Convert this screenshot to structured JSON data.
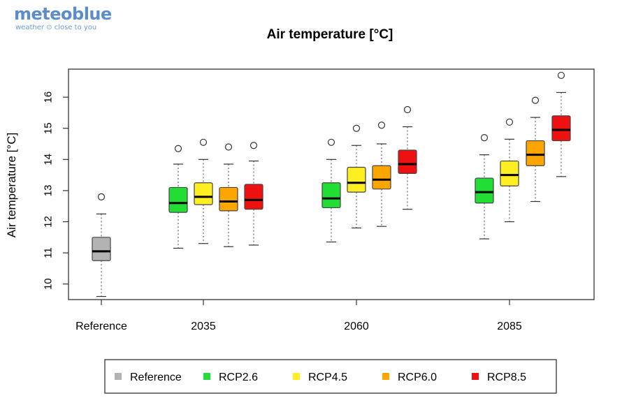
{
  "logo": {
    "name": "meteoblue",
    "tagline": "weather ⊙ close to you"
  },
  "chart_data": {
    "type": "box",
    "title": "Air temperature [°C]",
    "xlabel": "",
    "ylabel": "Air temperature [°C]",
    "ylim": [
      9.5,
      16.9
    ],
    "yticks": [
      10,
      11,
      12,
      13,
      14,
      15,
      16
    ],
    "categories": [
      "Reference",
      "2035",
      "2060",
      "2085"
    ],
    "grid": false,
    "legend_position": "bottom",
    "legend": [
      {
        "name": "Reference",
        "color": "#b3b3b3"
      },
      {
        "name": "RCP2.6",
        "color": "#22dd33"
      },
      {
        "name": "RCP4.5",
        "color": "#ffee22"
      },
      {
        "name": "RCP6.0",
        "color": "#ffa500"
      },
      {
        "name": "RCP8.5",
        "color": "#ee1111"
      }
    ],
    "boxes": [
      {
        "category": "Reference",
        "series": "Reference",
        "min": 9.6,
        "q1": 10.75,
        "median": 11.05,
        "q3": 11.5,
        "max": 12.25,
        "outliers": [
          12.8
        ]
      },
      {
        "category": "2035",
        "series": "RCP2.6",
        "min": 11.15,
        "q1": 12.3,
        "median": 12.6,
        "q3": 13.1,
        "max": 13.85,
        "outliers": [
          14.35
        ]
      },
      {
        "category": "2035",
        "series": "RCP4.5",
        "min": 11.3,
        "q1": 12.55,
        "median": 12.8,
        "q3": 13.25,
        "max": 14.0,
        "outliers": [
          14.55
        ]
      },
      {
        "category": "2035",
        "series": "RCP6.0",
        "min": 11.2,
        "q1": 12.35,
        "median": 12.65,
        "q3": 13.1,
        "max": 13.85,
        "outliers": [
          14.4
        ]
      },
      {
        "category": "2035",
        "series": "RCP8.5",
        "min": 11.25,
        "q1": 12.4,
        "median": 12.7,
        "q3": 13.2,
        "max": 13.95,
        "outliers": [
          14.45
        ]
      },
      {
        "category": "2060",
        "series": "RCP2.6",
        "min": 11.35,
        "q1": 12.45,
        "median": 12.75,
        "q3": 13.25,
        "max": 14.0,
        "outliers": [
          14.55
        ]
      },
      {
        "category": "2060",
        "series": "RCP4.5",
        "min": 11.8,
        "q1": 12.95,
        "median": 13.25,
        "q3": 13.75,
        "max": 14.45,
        "outliers": [
          15.0
        ]
      },
      {
        "category": "2060",
        "series": "RCP6.0",
        "min": 11.85,
        "q1": 13.05,
        "median": 13.35,
        "q3": 13.8,
        "max": 14.5,
        "outliers": [
          15.1
        ]
      },
      {
        "category": "2060",
        "series": "RCP8.5",
        "min": 12.4,
        "q1": 13.55,
        "median": 13.85,
        "q3": 14.3,
        "max": 15.05,
        "outliers": [
          15.6
        ]
      },
      {
        "category": "2085",
        "series": "RCP2.6",
        "min": 11.45,
        "q1": 12.6,
        "median": 12.95,
        "q3": 13.4,
        "max": 14.15,
        "outliers": [
          14.7
        ]
      },
      {
        "category": "2085",
        "series": "RCP4.5",
        "min": 12.0,
        "q1": 13.15,
        "median": 13.5,
        "q3": 13.95,
        "max": 14.65,
        "outliers": [
          15.2
        ]
      },
      {
        "category": "2085",
        "series": "RCP6.0",
        "min": 12.65,
        "q1": 13.8,
        "median": 14.15,
        "q3": 14.6,
        "max": 15.35,
        "outliers": [
          15.9
        ]
      },
      {
        "category": "2085",
        "series": "RCP8.5",
        "min": 13.45,
        "q1": 14.6,
        "median": 14.95,
        "q3": 15.4,
        "max": 16.15,
        "outliers": [
          16.7
        ]
      }
    ]
  }
}
